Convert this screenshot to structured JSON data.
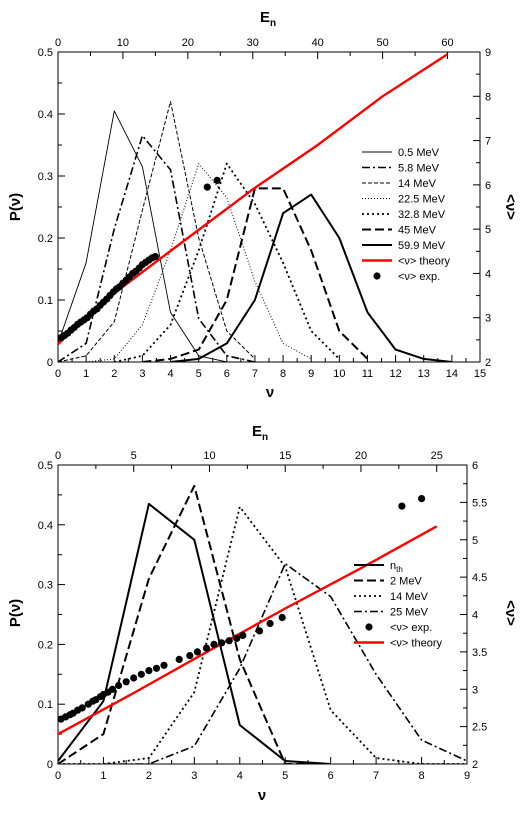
{
  "chart_data": [
    {
      "type": "line",
      "xlabel": "ν",
      "ylabel": "P(ν)",
      "x2label": "E",
      "x2label_sub": "n",
      "y2label": "<ν>",
      "xlim": [
        0,
        15
      ],
      "ylim": [
        0,
        0.5
      ],
      "x2lim": [
        0,
        65
      ],
      "y2lim": [
        2,
        9
      ],
      "x_ticks": [
        0,
        1,
        2,
        3,
        4,
        5,
        6,
        7,
        8,
        9,
        10,
        11,
        12,
        13,
        14,
        15
      ],
      "y_ticks": [
        0,
        0.1,
        0.2,
        0.3,
        0.4,
        0.5
      ],
      "x2_ticks": [
        0,
        10,
        20,
        30,
        40,
        50,
        60
      ],
      "y2_ticks": [
        2,
        3,
        4,
        5,
        6,
        7,
        8,
        9
      ],
      "legend_position": "right",
      "series": [
        {
          "name": "0.5 MeV",
          "style": "solid-thin",
          "x": [
            0,
            1,
            2,
            3,
            4,
            5,
            6
          ],
          "y": [
            0.03,
            0.16,
            0.405,
            0.315,
            0.08,
            0.01,
            0.0
          ]
        },
        {
          "name": "5.8 MeV",
          "style": "dashdot",
          "x": [
            0,
            1,
            2,
            3,
            4,
            5,
            6,
            7
          ],
          "y": [
            0.0,
            0.03,
            0.215,
            0.365,
            0.31,
            0.07,
            0.01,
            0.0
          ]
        },
        {
          "name": "14 MeV",
          "style": "dashed-thin",
          "x": [
            0,
            1,
            2,
            3,
            4,
            5,
            6,
            7
          ],
          "y": [
            0.0,
            0.01,
            0.065,
            0.245,
            0.42,
            0.2,
            0.05,
            0.005
          ]
        },
        {
          "name": "22.5 MeV",
          "style": "dotted-thin",
          "x": [
            1,
            2,
            3,
            4,
            5,
            6,
            7,
            8,
            9
          ],
          "y": [
            0.0,
            0.005,
            0.06,
            0.18,
            0.32,
            0.265,
            0.13,
            0.03,
            0.005
          ]
        },
        {
          "name": "32.8 MeV",
          "style": "dotted",
          "x": [
            2,
            3,
            4,
            5,
            6,
            7,
            8,
            9,
            10
          ],
          "y": [
            0.0,
            0.01,
            0.06,
            0.18,
            0.32,
            0.255,
            0.16,
            0.05,
            0.005
          ]
        },
        {
          "name": "45 MeV",
          "style": "dashed",
          "x": [
            3,
            4,
            5,
            6,
            7,
            8,
            9,
            10,
            11
          ],
          "y": [
            0.0,
            0.005,
            0.02,
            0.1,
            0.28,
            0.28,
            0.18,
            0.05,
            0.005
          ]
        },
        {
          "name": "59.9 MeV",
          "style": "solid",
          "x": [
            4,
            5,
            6,
            7,
            8,
            9,
            10,
            11,
            12,
            13,
            14
          ],
          "y": [
            0.0,
            0.005,
            0.03,
            0.1,
            0.24,
            0.27,
            0.2,
            0.08,
            0.02,
            0.005,
            0.0
          ]
        }
      ],
      "theory": {
        "name": "<ν> theory",
        "color": "#ff0000",
        "En": [
          0,
          5,
          10,
          20,
          30,
          40,
          50,
          60
        ],
        "nu": [
          2.4,
          3.12,
          3.7,
          4.8,
          5.9,
          6.9,
          8.0,
          8.95
        ]
      },
      "experiment": {
        "name": "<ν> exp.",
        "En": [
          0.5,
          1.0,
          1.5,
          2.0,
          2.5,
          3.0,
          3.5,
          4.0,
          4.5,
          5.0,
          5.5,
          6.0,
          6.5,
          7.0,
          7.5,
          8.0,
          8.5,
          9.0,
          9.5,
          10.0,
          10.5,
          11.0,
          11.5,
          12.0,
          12.5,
          13.0,
          13.5,
          14.0,
          14.5,
          15.0,
          23.0,
          24.5
        ],
        "nu": [
          2.55,
          2.6,
          2.65,
          2.72,
          2.78,
          2.85,
          2.9,
          2.95,
          3.0,
          3.08,
          3.15,
          3.2,
          3.28,
          3.35,
          3.42,
          3.5,
          3.58,
          3.65,
          3.7,
          3.78,
          3.85,
          3.92,
          4.0,
          4.05,
          4.12,
          4.2,
          4.25,
          4.3,
          4.35,
          4.38,
          5.95,
          6.1
        ]
      }
    },
    {
      "type": "line",
      "xlabel": "ν",
      "ylabel": "P(ν)",
      "x2label": "E",
      "x2label_sub": "n",
      "y2label": "<ν>",
      "xlim": [
        0,
        9
      ],
      "ylim": [
        0,
        0.5
      ],
      "x2lim": [
        0,
        27
      ],
      "y2lim": [
        2,
        6
      ],
      "x_ticks": [
        0,
        1,
        2,
        3,
        4,
        5,
        6,
        7,
        8,
        9
      ],
      "y_ticks": [
        0,
        0.1,
        0.2,
        0.3,
        0.4,
        0.5
      ],
      "x2_ticks": [
        0,
        5,
        10,
        15,
        20,
        25
      ],
      "y2_ticks": [
        2,
        2.5,
        3,
        3.5,
        4,
        4.5,
        5,
        5.5,
        6
      ],
      "legend_position": "right",
      "series": [
        {
          "name": "n",
          "name_sub": "th",
          "style": "solid",
          "x": [
            0,
            1,
            2,
            3,
            4,
            5,
            6
          ],
          "y": [
            0.005,
            0.105,
            0.435,
            0.375,
            0.065,
            0.005,
            0.0
          ]
        },
        {
          "name": "2 MeV",
          "style": "dashed",
          "x": [
            0,
            1,
            2,
            3,
            4,
            5,
            6
          ],
          "y": [
            0.0,
            0.05,
            0.31,
            0.465,
            0.175,
            0.0,
            0.0
          ]
        },
        {
          "name": "14 MeV",
          "style": "dotted",
          "x": [
            0,
            1,
            2,
            3,
            4,
            5,
            6,
            7,
            8,
            9
          ],
          "y": [
            0.0,
            0.0,
            0.01,
            0.12,
            0.43,
            0.33,
            0.09,
            0.01,
            0.0,
            0.0
          ]
        },
        {
          "name": "25 MeV",
          "style": "dashdot",
          "x": [
            1,
            2,
            3,
            4,
            5,
            6,
            7,
            8,
            9
          ],
          "y": [
            0.0,
            0.0,
            0.03,
            0.16,
            0.335,
            0.28,
            0.15,
            0.04,
            0.005
          ]
        }
      ],
      "experiment": {
        "name": "<ν> exp.",
        "En": [
          0.2,
          0.5,
          0.8,
          1.0,
          1.3,
          1.6,
          2.0,
          2.3,
          2.5,
          2.8,
          3.0,
          3.3,
          3.6,
          4.0,
          4.5,
          5.0,
          5.5,
          6.0,
          6.5,
          7.0,
          8.0,
          8.7,
          9.2,
          9.8,
          10.3,
          10.8,
          11.3,
          11.8,
          12.2,
          13.3,
          14.0,
          14.8,
          22.7,
          24.0
        ],
        "nu": [
          2.6,
          2.63,
          2.66,
          2.68,
          2.72,
          2.75,
          2.8,
          2.84,
          2.86,
          2.9,
          2.93,
          2.96,
          3.0,
          3.05,
          3.1,
          3.15,
          3.2,
          3.25,
          3.28,
          3.32,
          3.4,
          3.45,
          3.5,
          3.55,
          3.6,
          3.62,
          3.65,
          3.68,
          3.72,
          3.78,
          3.88,
          3.96,
          5.45,
          5.55
        ]
      },
      "theory": {
        "name": "<ν> theory",
        "color": "#ff0000",
        "En": [
          0,
          5,
          10,
          15,
          20,
          25
        ],
        "nu": [
          2.4,
          2.95,
          3.52,
          4.08,
          4.62,
          5.18
        ]
      }
    }
  ]
}
